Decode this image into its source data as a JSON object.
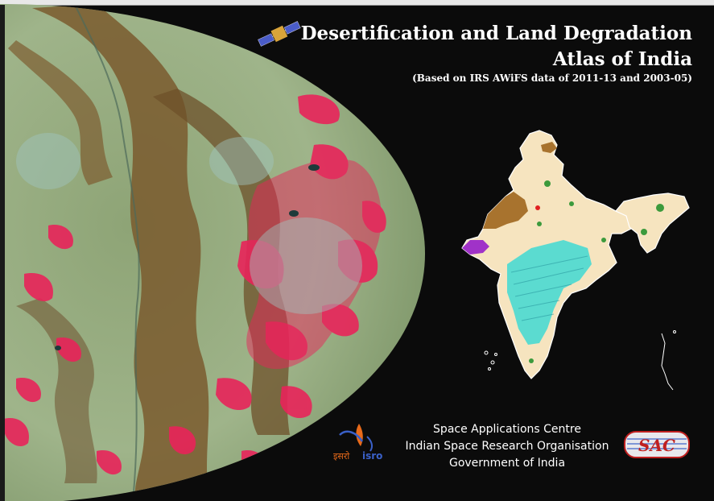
{
  "cover": {
    "title_line1": "Desertification and Land Degradation",
    "title_line2": "Atlas of India",
    "subtitle": "(Based on IRS AWiFS data of 2011-13 and 2003-05)"
  },
  "organization": {
    "line1": "Space Applications Centre",
    "line2": "Indian Space Research Organisation",
    "line3": "Government of India"
  },
  "logos": {
    "isro_hindi": "इसरो",
    "isro_english": "isro",
    "sac": "SAC"
  },
  "icons": [
    "satellite-icon",
    "isro-logo",
    "sac-logo"
  ],
  "colors": {
    "background": "#0b0b0b",
    "text": "#ffffff",
    "vegetation_red": "#e8245a",
    "landscape_green": "#8fa878",
    "terrain_brown": "#7a5a2e",
    "map_base": "#f6e4bf",
    "map_cyan": "#3fd9d2",
    "map_brown": "#a8732e",
    "map_purple": "#a032c8"
  }
}
